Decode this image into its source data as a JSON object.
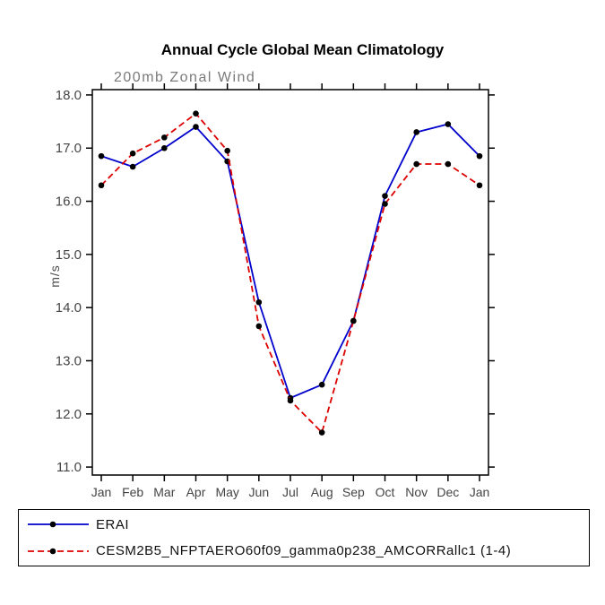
{
  "chart_data": {
    "type": "line",
    "title": "Annual Cycle Global Mean Climatology",
    "subtitle": "200mb Zonal Wind",
    "ylabel": "m/s",
    "categories": [
      "Jan",
      "Feb",
      "Mar",
      "Apr",
      "May",
      "Jun",
      "Jul",
      "Aug",
      "Sep",
      "Oct",
      "Nov",
      "Dec",
      "Jan"
    ],
    "yticks": [
      11.0,
      12.0,
      13.0,
      14.0,
      15.0,
      16.0,
      17.0,
      18.0
    ],
    "ylim": [
      10.85,
      18.1
    ],
    "grid": false,
    "legend_position": "bottom",
    "marker_color": "#000000",
    "series": [
      {
        "name": "ERAI",
        "color": "#0000cc",
        "dash": "solid",
        "values": [
          16.85,
          16.65,
          17.0,
          17.4,
          16.75,
          14.1,
          12.3,
          12.55,
          13.75,
          16.1,
          17.3,
          17.45,
          16.85
        ]
      },
      {
        "name": "CESM2B5_NFPTAERO60f09_gamma0p238_AMCORRallc1 (1-4)",
        "color": "#dd0000",
        "dash": "dashed",
        "values": [
          16.3,
          16.9,
          17.2,
          17.65,
          16.95,
          13.65,
          12.25,
          11.65,
          13.75,
          15.95,
          16.7,
          16.7,
          16.3
        ]
      }
    ]
  }
}
